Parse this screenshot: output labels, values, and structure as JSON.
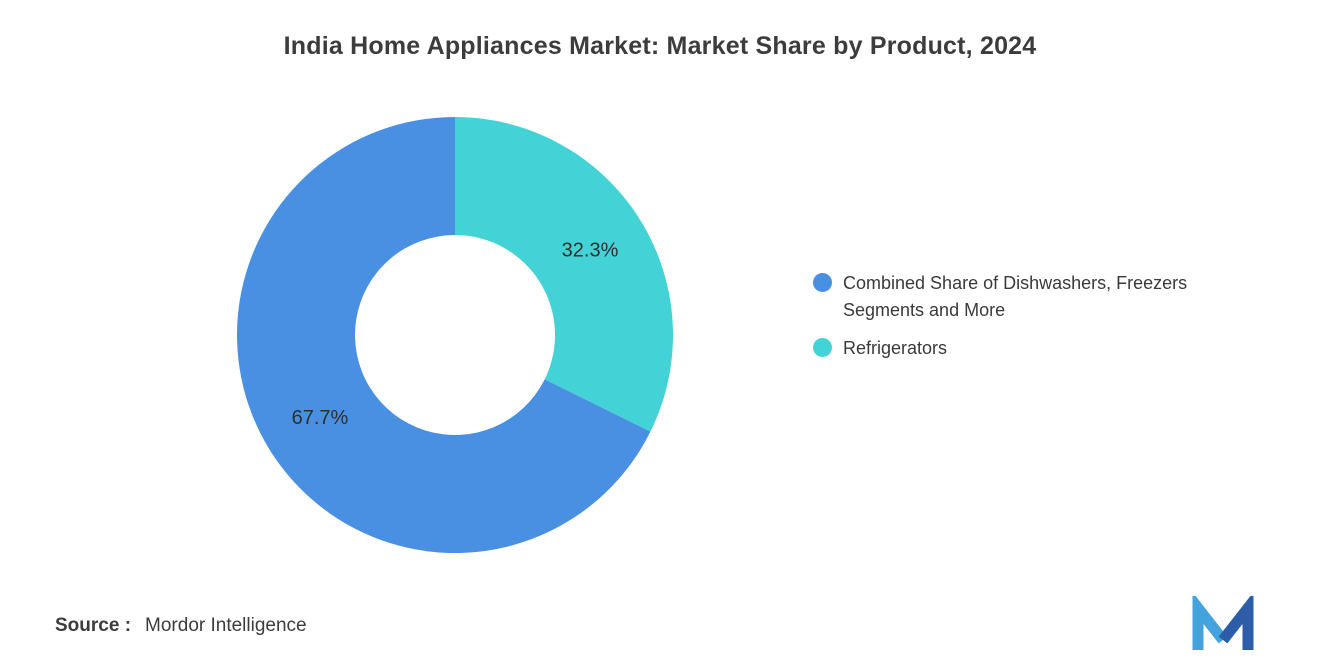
{
  "page": {
    "title": "India Home Appliances Market: Market Share by Product, 2024",
    "source_label": "Source :",
    "source_value": "Mordor Intelligence"
  },
  "chart_data": {
    "type": "pie",
    "subtype": "donut",
    "title": "India Home Appliances Market: Market Share by Product, 2024",
    "unit": "%",
    "segments": [
      {
        "label": "Combined Share of Dishwashers, Freezers Segments and More",
        "value": 67.7,
        "data_label": "67.7%",
        "color": "#4A90E2"
      },
      {
        "label": "Refrigerators",
        "value": 32.3,
        "data_label": "32.3%",
        "color": "#43D3D6"
      }
    ],
    "layout": {
      "direction": "counter-clockwise-from-top",
      "legend_position": "right",
      "donut_hole_ratio": 0.46,
      "data_labels": "inside"
    }
  },
  "logo": {
    "name": "Mordor Intelligence logo",
    "color_left": "#44A2DC",
    "color_right": "#2D5CA8"
  }
}
